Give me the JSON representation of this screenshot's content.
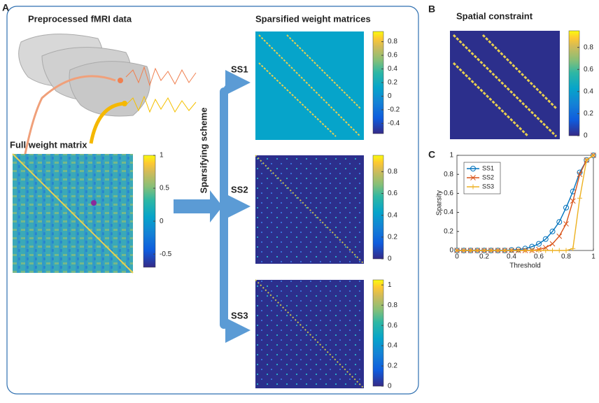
{
  "panel_labels": [
    "A",
    "B",
    "C"
  ],
  "panel_a": {
    "title_preprocessed": "Preprocessed fMRI data",
    "title_full": "Full weight matrix",
    "title_sparsified": "Sparsified weight matrices",
    "scheme_label": "Sparsifying scheme",
    "schemes": [
      "SS1",
      "SS2",
      "SS3"
    ]
  },
  "panel_b": {
    "title": "Spatial constraint"
  },
  "colorbars": [
    {
      "ylim": [
        -0.7,
        1
      ],
      "yticks": [
        -0.5,
        0,
        0.5,
        1
      ]
    },
    {
      "ylim": [
        -0.55,
        0.95
      ],
      "yticks": [
        -0.4,
        -0.2,
        0,
        0.2,
        0.4,
        0.6,
        0.8
      ]
    },
    {
      "ylim": [
        0,
        0.95
      ],
      "yticks": [
        0,
        0.2,
        0.4,
        0.6,
        0.8
      ]
    },
    {
      "ylim": [
        0,
        1.05
      ],
      "yticks": [
        0,
        0.2,
        0.4,
        0.6,
        0.8,
        1
      ]
    },
    {
      "ylim": [
        0,
        0.95
      ],
      "yticks": [
        0,
        0.2,
        0.4,
        0.6,
        0.8
      ]
    }
  ],
  "chart_data": {
    "type": "line",
    "xlabel": "Threshold",
    "ylabel": "Sparsity",
    "x": [
      0,
      0.05,
      0.1,
      0.15,
      0.2,
      0.25,
      0.3,
      0.35,
      0.4,
      0.45,
      0.5,
      0.55,
      0.6,
      0.65,
      0.7,
      0.75,
      0.8,
      0.85,
      0.9,
      0.95,
      1
    ],
    "xlim": [
      0,
      1
    ],
    "ylim": [
      0,
      1
    ],
    "xticks": [
      0,
      0.2,
      0.4,
      0.6,
      0.8,
      1
    ],
    "yticks": [
      0,
      0.2,
      0.4,
      0.6,
      0.8,
      1
    ],
    "legend": "upper left",
    "series": [
      {
        "name": "SS1",
        "color": "#0072bd",
        "marker": "circle",
        "values": [
          0,
          0,
          0,
          0,
          0,
          0,
          0,
          0,
          0.005,
          0.01,
          0.02,
          0.04,
          0.07,
          0.12,
          0.2,
          0.3,
          0.45,
          0.62,
          0.82,
          0.95,
          1
        ]
      },
      {
        "name": "SS2",
        "color": "#d95319",
        "marker": "x",
        "values": [
          0,
          0,
          0,
          0,
          0,
          0,
          0,
          0,
          0,
          0,
          0,
          0,
          0.01,
          0.03,
          0.07,
          0.15,
          0.28,
          0.52,
          0.8,
          0.95,
          1
        ]
      },
      {
        "name": "SS3",
        "color": "#edb120",
        "marker": "plus",
        "values": [
          0,
          0,
          0,
          0,
          0,
          0,
          0,
          0,
          0,
          0,
          0,
          0,
          0,
          0,
          0,
          0,
          0,
          0.02,
          0.55,
          0.95,
          1
        ]
      }
    ]
  }
}
